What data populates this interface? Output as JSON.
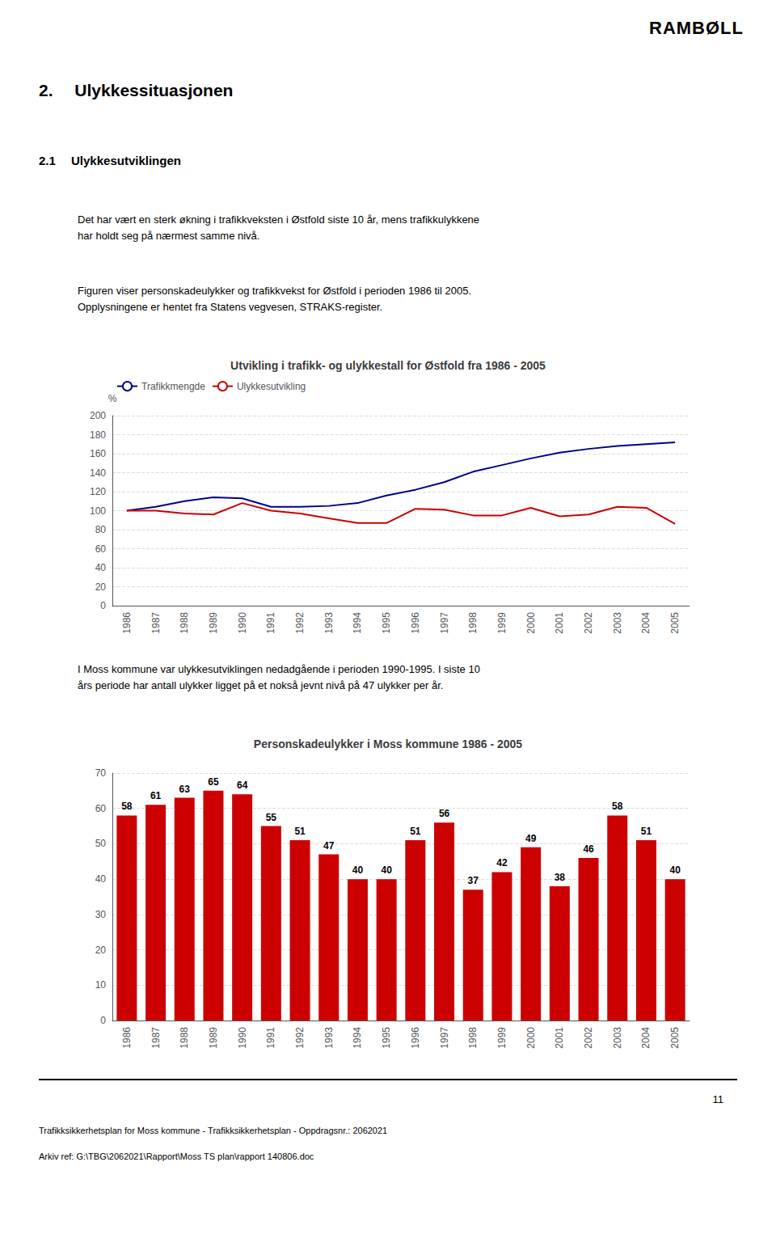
{
  "annotations": [
    "RAMBØLL",
    "2.  Ulykkessituasjonen",
    "2.1  Ulykkesutviklingen",
    "Det har vært en sterk økning i trafikkveksten i Østfold siste 10 år, mens trafikkulykkene\nhar holdt seg på nærmest samme nivå.",
    "Figuren viser personskadeulykker og trafikkvekst for Østfold i perioden 1986 til 2005.\nOpplysningene er hentet fra Statens vegvesen, STRAKS-register.",
    "I Moss kommune var ulykkesutviklingen nedadgående i perioden 1990-1995. I siste 10\nårs periode har antall ulykker ligget på et nokså jevnt nivå på 47 ulykker per år.",
    "11",
    "Trafikksikkerhetsplan for Moss kommune - Trafikksikkerhetsplan - Oppdragsnr.: 2062021",
    "Arkiv ref: G:\\TBG\\2062021\\Rapport\\Moss TS plan\\rapport 140806.doc"
  ],
  "chart_data": [
    {
      "type": "line",
      "title": "Utvikling i trafikk- og ulykkestall for Østfold fra 1986 - 2005",
      "ylabel": "%",
      "categories": [
        "1986",
        "1987",
        "1988",
        "1989",
        "1990",
        "1991",
        "1992",
        "1993",
        "1994",
        "1995",
        "1996",
        "1997",
        "1998",
        "1999",
        "2000",
        "2001",
        "2002",
        "2003",
        "2004",
        "2005"
      ],
      "series": [
        {
          "name": "Trafikkmengde",
          "color": "#00008b",
          "values": [
            100,
            104,
            110,
            114,
            113,
            104,
            104,
            105,
            108,
            116,
            122,
            130,
            141,
            148,
            155,
            161,
            165,
            168,
            170,
            172
          ]
        },
        {
          "name": "Ulykkesutvikling",
          "color": "#cc0000",
          "values": [
            100,
            100,
            97,
            96,
            108,
            100,
            97,
            92,
            87,
            87,
            102,
            101,
            95,
            95,
            103,
            94,
            96,
            104,
            103,
            86
          ]
        }
      ],
      "ylim": [
        0,
        200
      ],
      "yticks": [
        0,
        20,
        40,
        60,
        80,
        100,
        120,
        140,
        160,
        180,
        200
      ],
      "grid": true,
      "legend": "upper left"
    },
    {
      "type": "bar",
      "title": "Personskadeulykker i Moss kommune 1986 - 2005",
      "categories": [
        "1986",
        "1987",
        "1988",
        "1989",
        "1990",
        "1991",
        "1992",
        "1993",
        "1994",
        "1995",
        "1996",
        "1997",
        "1998",
        "1999",
        "2000",
        "2001",
        "2002",
        "2003",
        "2004",
        "2005"
      ],
      "values": [
        58,
        61,
        63,
        65,
        64,
        55,
        51,
        47,
        40,
        40,
        51,
        56,
        37,
        42,
        49,
        38,
        46,
        58,
        51,
        40
      ],
      "color": "#cc0000",
      "ylim": [
        0,
        70
      ],
      "yticks": [
        0,
        10,
        20,
        30,
        40,
        50,
        60,
        70
      ],
      "grid": true,
      "data_labels": true
    }
  ]
}
